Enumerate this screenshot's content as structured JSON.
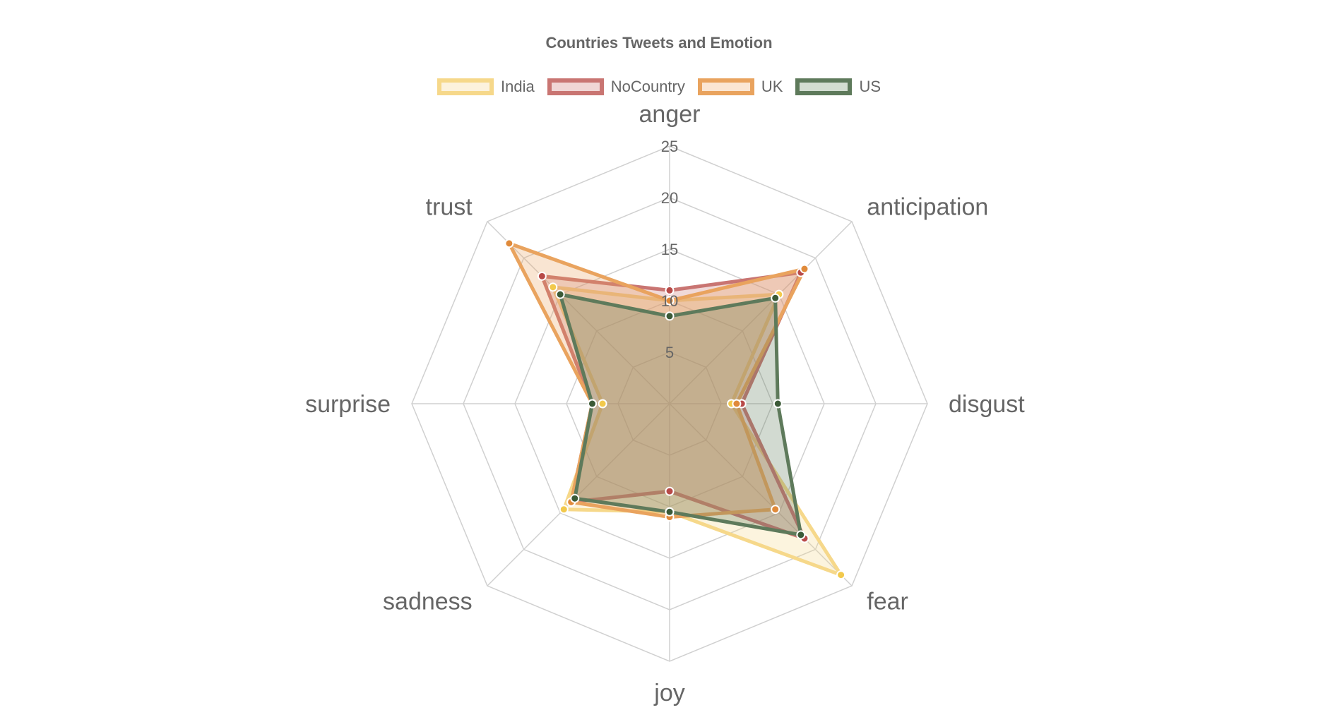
{
  "chart_data": {
    "type": "radar",
    "title": "Countries Tweets and Emotion",
    "categories": [
      "anger",
      "anticipation",
      "disgust",
      "fear",
      "joy",
      "sadness",
      "surprise",
      "trust"
    ],
    "r_range": [
      0,
      25
    ],
    "ticks": [
      5,
      10,
      15,
      20,
      25
    ],
    "tick_labels": [
      "5",
      "10",
      "15",
      "20",
      "25"
    ],
    "grid": true,
    "legend_position": "top",
    "series": [
      {
        "name": "India",
        "values": [
          10,
          15,
          6,
          23.5,
          10.5,
          14.5,
          6.5,
          16
        ],
        "stroke": "#f6d88a",
        "fill": "#fcf2dd",
        "point": "#f2c94c"
      },
      {
        "name": "NoCountry",
        "values": [
          11,
          18,
          7,
          18.5,
          8.5,
          13.5,
          7.5,
          17.5
        ],
        "stroke": "#c97572",
        "fill": "#f0d6d5",
        "point": "#b84a48"
      },
      {
        "name": "UK",
        "values": [
          10,
          18.5,
          6.5,
          14.5,
          11,
          13.5,
          7.5,
          22
        ],
        "stroke": "#e9a35e",
        "fill": "#fbe6d3",
        "point": "#e08a3a"
      },
      {
        "name": "US",
        "values": [
          8.5,
          14.5,
          10.5,
          18,
          10.5,
          13,
          7.5,
          15
        ],
        "stroke": "#5e7a5b",
        "fill": "#d3ddd1",
        "point": "#3b5a37"
      }
    ]
  }
}
